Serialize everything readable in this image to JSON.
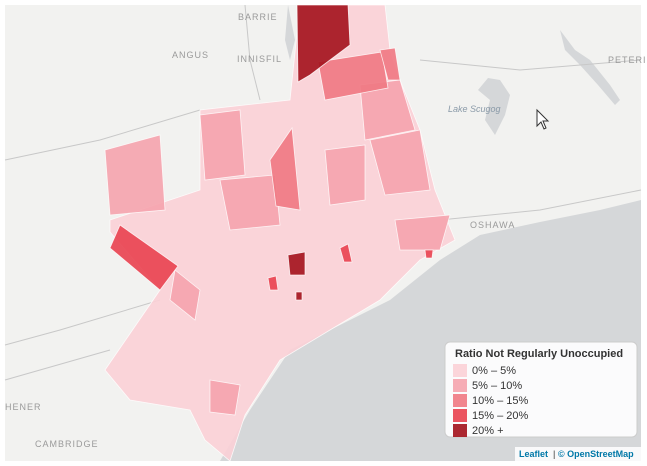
{
  "map": {
    "places": [
      "BARRIE",
      "ANGUS",
      "INNISFIL",
      "PETERI",
      "Lake Scugog",
      "OSHAWA",
      "HENER",
      "CAMBRIDGE"
    ],
    "legend": {
      "title": "Ratio Not Regularly Unoccupied",
      "items": [
        {
          "label": "0% – 5%",
          "color": "#fbd0d6"
        },
        {
          "label": "5% – 10%",
          "color": "#f5a3ad"
        },
        {
          "label": "10% – 15%",
          "color": "#f07882"
        },
        {
          "label": "15% – 20%",
          "color": "#e9414f"
        },
        {
          "label": "20% +",
          "color": "#a3111b"
        }
      ]
    },
    "attribution": {
      "leaflet": "Leaflet",
      "separator": "|",
      "osm": "© OpenStreetMap"
    }
  }
}
